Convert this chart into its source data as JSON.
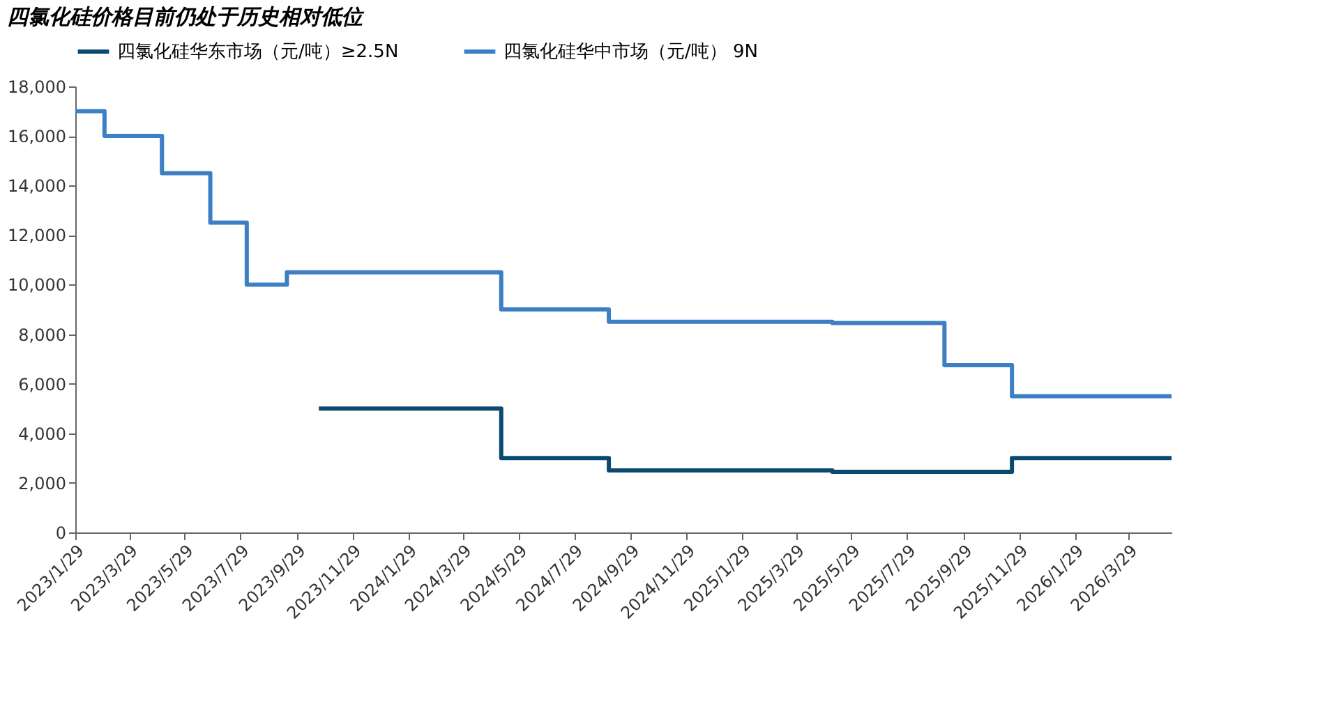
{
  "chart_data": {
    "type": "step",
    "title": "四氯化硅价格目前仍处于历史相对低位",
    "series": [
      {
        "name": "四氯化硅华东市场（元/吨）≥2.5N",
        "color": "#0b4a6f",
        "x": [
          "2023-10-23",
          "2024-05-10",
          "2024-09-05",
          "2025-05-08",
          "2025-11-21",
          "2026-05-15"
        ],
        "values": [
          5000,
          3000,
          2500,
          2450,
          3000,
          3000
        ]
      },
      {
        "name": "四氯化硅华中市场（元/吨） 9N",
        "color": "#3d7fc4",
        "x": [
          "2023-01-29",
          "2023-03-02",
          "2023-05-04",
          "2023-06-26",
          "2023-08-05",
          "2023-09-18",
          "2024-05-10",
          "2024-09-05",
          "2025-05-08",
          "2025-09-08",
          "2025-11-21",
          "2026-05-15"
        ],
        "values": [
          17000,
          16000,
          14500,
          12500,
          10000,
          10500,
          9000,
          8500,
          8450,
          6750,
          5500,
          5500
        ]
      }
    ],
    "xlim": [
      "2023-01-29",
      "2026-05-15"
    ],
    "xticks": [
      {
        "value": "2023-01-29",
        "label": "2023/1/29"
      },
      {
        "value": "2023-03-29",
        "label": "2023/3/29"
      },
      {
        "value": "2023-05-29",
        "label": "2023/5/29"
      },
      {
        "value": "2023-07-29",
        "label": "2023/7/29"
      },
      {
        "value": "2023-09-29",
        "label": "2023/9/29"
      },
      {
        "value": "2023-11-29",
        "label": "2023/11/29"
      },
      {
        "value": "2024-01-29",
        "label": "2024/1/29"
      },
      {
        "value": "2024-03-29",
        "label": "2024/3/29"
      },
      {
        "value": "2024-05-29",
        "label": "2024/5/29"
      },
      {
        "value": "2024-07-29",
        "label": "2024/7/29"
      },
      {
        "value": "2024-09-29",
        "label": "2024/9/29"
      },
      {
        "value": "2024-11-29",
        "label": "2024/11/29"
      },
      {
        "value": "2025-01-29",
        "label": "2025/1/29"
      },
      {
        "value": "2025-03-29",
        "label": "2025/3/29"
      },
      {
        "value": "2025-05-29",
        "label": "2025/5/29"
      },
      {
        "value": "2025-07-29",
        "label": "2025/7/29"
      },
      {
        "value": "2025-09-29",
        "label": "2025/9/29"
      },
      {
        "value": "2025-11-29",
        "label": "2025/11/29"
      },
      {
        "value": "2026-01-29",
        "label": "2026/1/29"
      },
      {
        "value": "2026-03-29",
        "label": "2026/3/29"
      }
    ],
    "ylim": [
      0,
      18000
    ],
    "yticks": [
      0,
      {
        "value": 2000,
        "label": "2,000"
      },
      {
        "value": 4000,
        "label": "4,000"
      },
      {
        "value": 6000,
        "label": "6,000"
      },
      {
        "value": 8000,
        "label": "8,000"
      },
      {
        "value": 10000,
        "label": "10,000"
      },
      {
        "value": 12000,
        "label": "12,000"
      },
      {
        "value": 14000,
        "label": "14,000"
      },
      {
        "value": 16000,
        "label": "16,000"
      },
      {
        "value": 18000,
        "label": "18,000"
      }
    ],
    "grid": false,
    "legend": "top",
    "marker": "none",
    "line_style": "solid"
  }
}
